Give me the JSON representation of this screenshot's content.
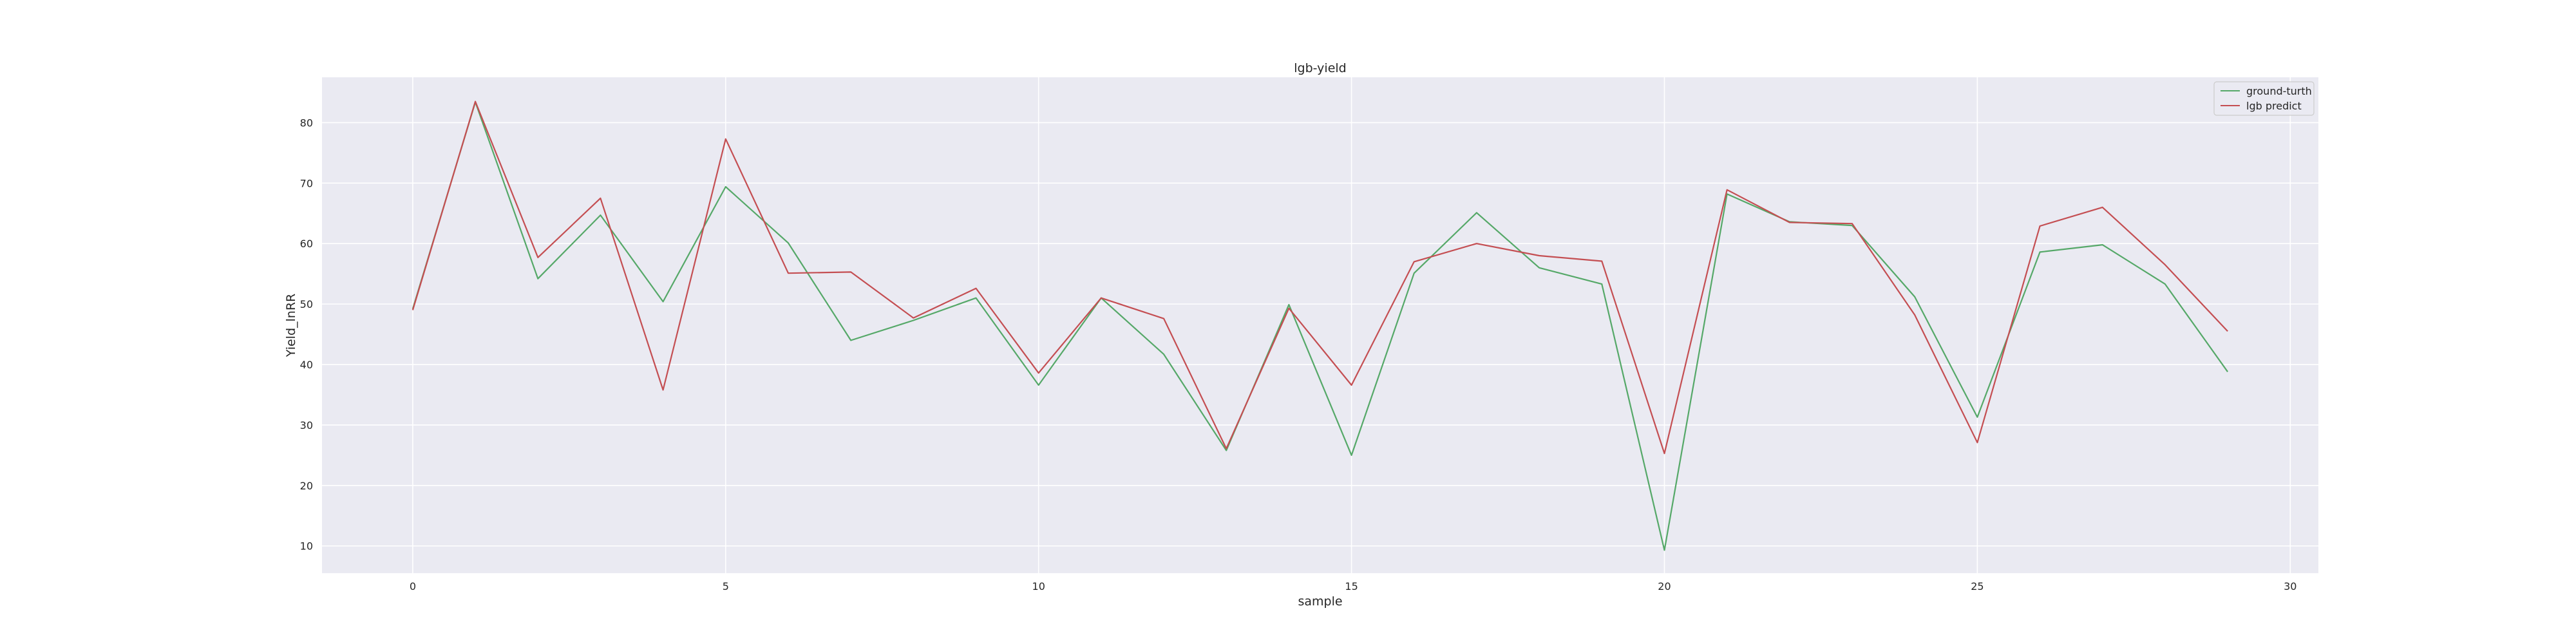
{
  "chart_data": {
    "type": "line",
    "title": "lgb-yield",
    "xlabel": "sample",
    "ylabel": "Yield_lnRR",
    "xlim": [
      -1.45,
      30.45
    ],
    "ylim": [
      5.5,
      87.5
    ],
    "xticks": [
      0,
      5,
      10,
      15,
      20,
      25,
      30
    ],
    "yticks": [
      10,
      20,
      30,
      40,
      50,
      60,
      70,
      80
    ],
    "grid": true,
    "legend_position": "upper right",
    "background_color": "#eaeaf2",
    "x": [
      0,
      1,
      2,
      3,
      4,
      5,
      6,
      7,
      8,
      9,
      10,
      11,
      12,
      13,
      14,
      15,
      16,
      17,
      18,
      19,
      20,
      21,
      22,
      23,
      24,
      25,
      26,
      27,
      28,
      29
    ],
    "series": [
      {
        "name": "ground-turth",
        "color": "#55a868",
        "values": [
          49.2,
          83.4,
          54.2,
          64.7,
          50.4,
          69.4,
          60.1,
          44.0,
          47.3,
          51.0,
          36.6,
          51.0,
          41.7,
          25.8,
          49.9,
          25.0,
          55.1,
          65.1,
          56.0,
          53.3,
          9.3,
          68.2,
          63.6,
          63.0,
          51.2,
          31.3,
          58.6,
          59.8,
          53.3,
          38.8
        ]
      },
      {
        "name": "lgb predict",
        "color": "#c44e52",
        "values": [
          49.0,
          83.5,
          57.7,
          67.5,
          35.8,
          77.3,
          55.1,
          55.3,
          47.7,
          52.6,
          38.6,
          51.0,
          47.6,
          26.1,
          49.3,
          36.6,
          57.0,
          60.0,
          58.0,
          57.1,
          25.3,
          68.9,
          63.5,
          63.3,
          48.2,
          27.1,
          62.9,
          66.0,
          56.5,
          45.5
        ]
      }
    ]
  }
}
